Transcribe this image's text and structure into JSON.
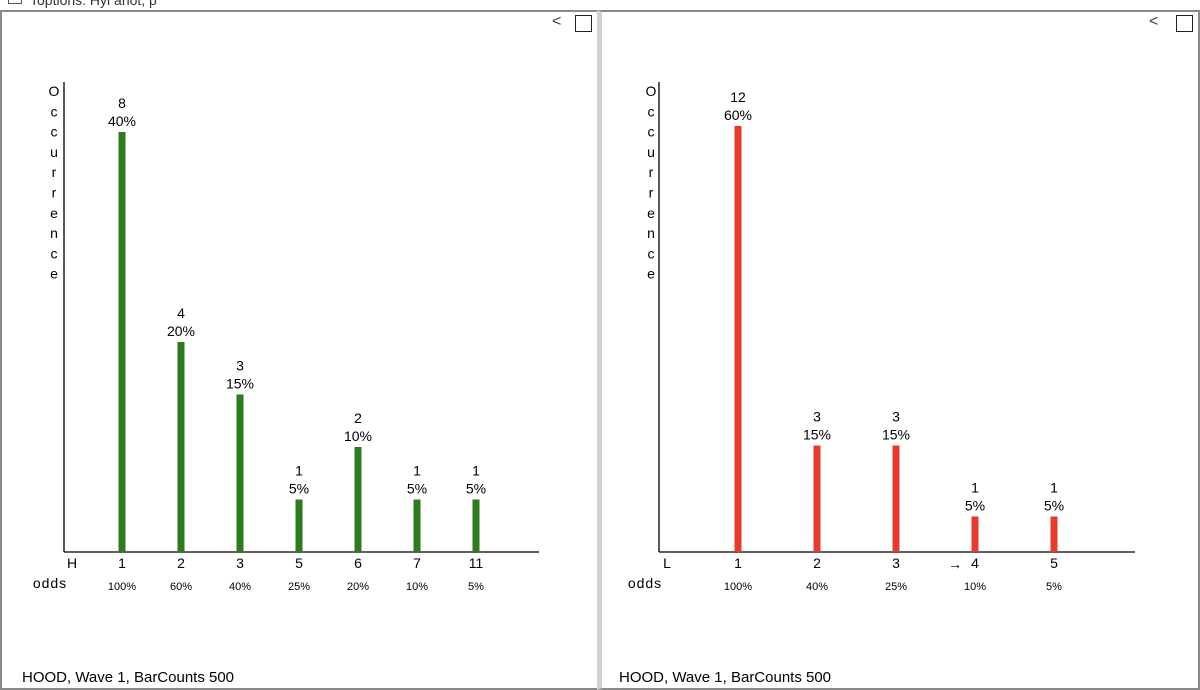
{
  "top_title": "Toptions: Hyi anot, p",
  "panels": [
    {
      "collapse_label": "<",
      "footer": "HOOD, Wave 1, BarCounts 500",
      "chart_data": {
        "type": "bar",
        "ylabel": "Occurrence",
        "xlabel": "odds",
        "axis_tag": "H",
        "color": "#2e7a1e",
        "categories": [
          "1",
          "2",
          "3",
          "5",
          "6",
          "7",
          "11"
        ],
        "values": [
          8,
          4,
          3,
          1,
          2,
          1,
          1
        ],
        "value_pcts": [
          "40%",
          "20%",
          "15%",
          "5%",
          "10%",
          "5%",
          "5%"
        ],
        "odds": [
          "100%",
          "60%",
          "40%",
          "25%",
          "20%",
          "10%",
          "5%"
        ],
        "ylim": [
          0,
          9
        ],
        "grid": false
      }
    },
    {
      "collapse_label": "<",
      "footer": "HOOD, Wave 1, BarCounts 500",
      "chart_data": {
        "type": "bar",
        "ylabel": "Occurrence",
        "xlabel": "odds",
        "axis_tag": "L",
        "color": "#e8392e",
        "categories": [
          "1",
          "2",
          "3",
          "4",
          "5"
        ],
        "marker_category_index": 3,
        "marker_symbol": "→",
        "values": [
          12,
          3,
          3,
          1,
          1
        ],
        "value_pcts": [
          "60%",
          "15%",
          "15%",
          "5%",
          "5%"
        ],
        "odds": [
          "100%",
          "40%",
          "25%",
          "10%",
          "5%"
        ],
        "ylim": [
          0,
          12.5
        ],
        "grid": false
      }
    }
  ]
}
